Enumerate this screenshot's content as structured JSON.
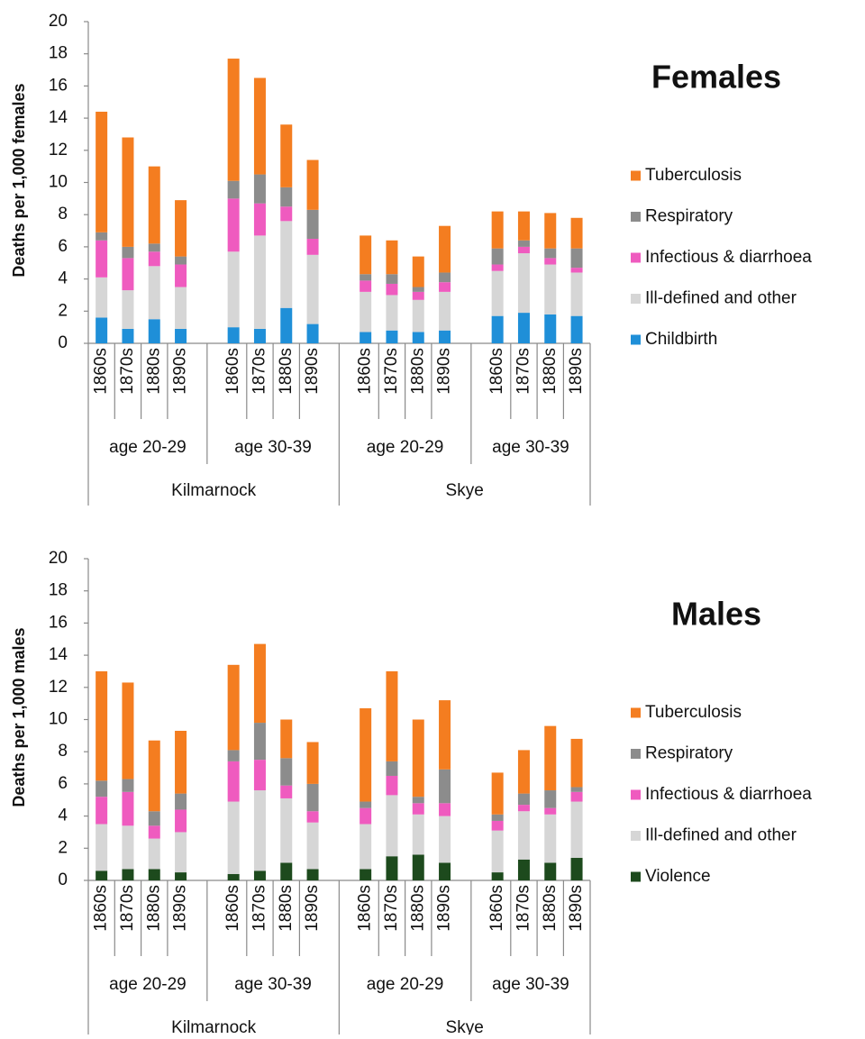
{
  "chart_data": [
    {
      "type": "stacked_bar",
      "title": "Females",
      "y_label": "Deaths per 1,000 females",
      "categories": [
        "1860s",
        "1870s",
        "1880s",
        "1890s",
        "1860s",
        "1870s",
        "1880s",
        "1890s",
        "1860s",
        "1870s",
        "1880s",
        "1890s",
        "1860s",
        "1870s",
        "1880s",
        "1890s"
      ],
      "age_groups": [
        "age 20-29",
        "age 30-39",
        "age 20-29",
        "age 30-39"
      ],
      "places": [
        "Kilmarnock",
        "Skye"
      ],
      "ylim": [
        0,
        20
      ],
      "yticks": [
        0,
        2,
        4,
        6,
        8,
        10,
        12,
        14,
        16,
        18,
        20
      ],
      "series": [
        {
          "name": "Childbirth",
          "color": "#1f8fd8",
          "values": [
            1.6,
            0.9,
            1.5,
            0.9,
            1.0,
            0.9,
            2.2,
            1.2,
            0.7,
            0.8,
            0.7,
            0.8,
            1.7,
            1.9,
            1.8,
            1.7
          ]
        },
        {
          "name": "Ill-defined and other",
          "color": "#d6d6d6",
          "values": [
            2.5,
            2.4,
            3.3,
            2.6,
            4.7,
            5.8,
            5.4,
            4.3,
            2.5,
            2.2,
            2.0,
            2.4,
            2.8,
            3.7,
            3.1,
            2.7
          ]
        },
        {
          "name": "Infectious & diarrhoea",
          "color": "#ef5bbf",
          "values": [
            2.3,
            2.0,
            0.9,
            1.4,
            3.3,
            2.0,
            0.9,
            1.0,
            0.7,
            0.7,
            0.5,
            0.6,
            0.4,
            0.4,
            0.4,
            0.3
          ]
        },
        {
          "name": "Respiratory",
          "color": "#8c8c8c",
          "values": [
            0.5,
            0.7,
            0.5,
            0.5,
            1.1,
            1.8,
            1.2,
            1.8,
            0.4,
            0.6,
            0.3,
            0.6,
            1.0,
            0.4,
            0.6,
            1.2
          ]
        },
        {
          "name": "Tuberculosis",
          "color": "#f47d20",
          "values": [
            7.5,
            6.8,
            4.8,
            3.5,
            7.6,
            6.0,
            3.9,
            3.1,
            2.4,
            2.1,
            1.9,
            2.9,
            2.3,
            1.8,
            2.2,
            1.9
          ]
        }
      ]
    },
    {
      "type": "stacked_bar",
      "title": "Males",
      "y_label": "Deaths per 1,000 males",
      "categories": [
        "1860s",
        "1870s",
        "1880s",
        "1890s",
        "1860s",
        "1870s",
        "1880s",
        "1890s",
        "1860s",
        "1870s",
        "1880s",
        "1890s",
        "1860s",
        "1870s",
        "1880s",
        "1890s"
      ],
      "age_groups": [
        "age 20-29",
        "age 30-39",
        "age 20-29",
        "age 30-39"
      ],
      "places": [
        "Kilmarnock",
        "Skye"
      ],
      "ylim": [
        0,
        20
      ],
      "yticks": [
        0,
        2,
        4,
        6,
        8,
        10,
        12,
        14,
        16,
        18,
        20
      ],
      "series": [
        {
          "name": "Violence",
          "color": "#1d4a1d",
          "values": [
            0.6,
            0.7,
            0.7,
            0.5,
            0.4,
            0.6,
            1.1,
            0.7,
            0.7,
            1.5,
            1.6,
            1.1,
            0.5,
            1.3,
            1.1,
            1.4
          ]
        },
        {
          "name": "Ill-defined and other",
          "color": "#d6d6d6",
          "values": [
            2.9,
            2.7,
            1.9,
            2.5,
            4.5,
            5.0,
            4.0,
            2.9,
            2.8,
            3.8,
            2.5,
            2.9,
            2.6,
            3.0,
            3.0,
            3.5
          ]
        },
        {
          "name": "Infectious & diarrhoea",
          "color": "#ef5bbf",
          "values": [
            1.7,
            2.1,
            0.8,
            1.4,
            2.5,
            1.9,
            0.8,
            0.7,
            1.0,
            1.2,
            0.7,
            0.8,
            0.6,
            0.4,
            0.4,
            0.6
          ]
        },
        {
          "name": "Respiratory",
          "color": "#8c8c8c",
          "values": [
            1.0,
            0.8,
            0.9,
            1.0,
            0.7,
            2.3,
            1.7,
            1.7,
            0.4,
            0.9,
            0.4,
            2.1,
            0.4,
            0.7,
            1.1,
            0.3
          ]
        },
        {
          "name": "Tuberculosis",
          "color": "#f47d20",
          "values": [
            6.8,
            6.0,
            4.4,
            3.9,
            5.3,
            4.9,
            2.4,
            2.6,
            5.8,
            5.6,
            4.8,
            4.3,
            2.6,
            2.7,
            4.0,
            3.0
          ]
        }
      ]
    }
  ]
}
